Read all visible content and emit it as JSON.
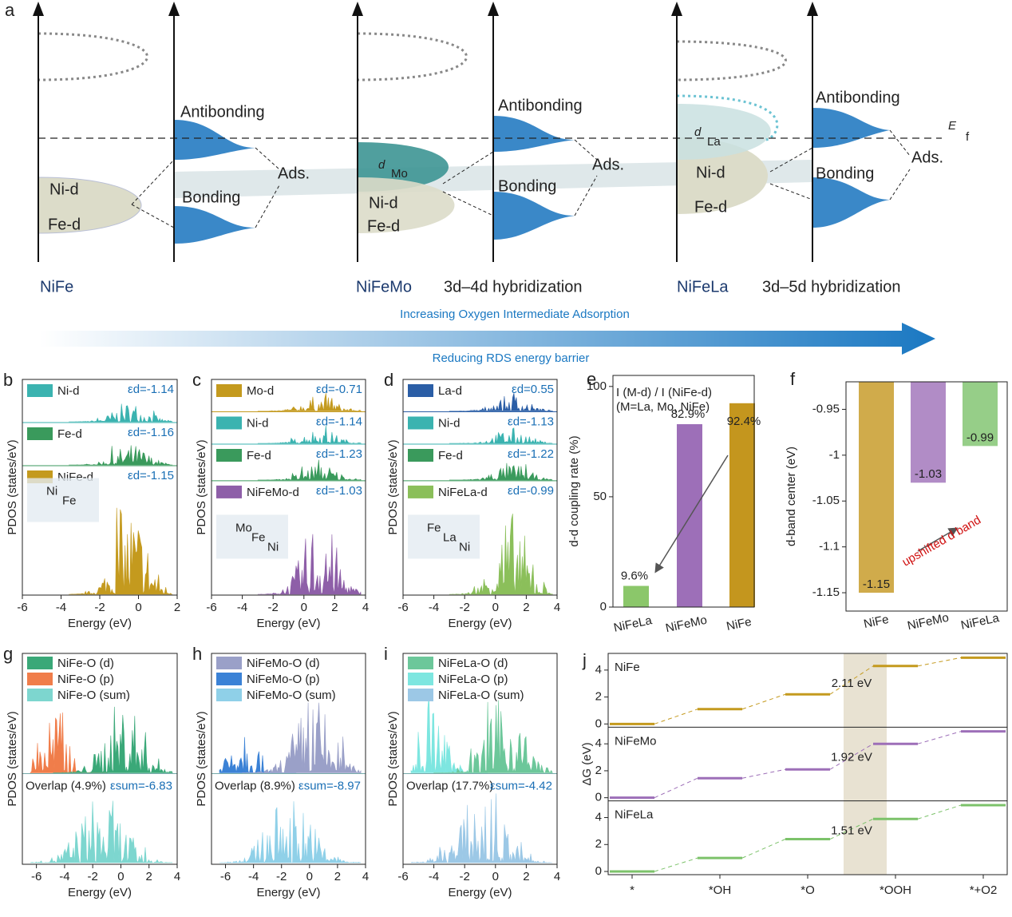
{
  "diagram": {
    "label": "a",
    "fermi": {
      "main": "E",
      "sub": "f"
    },
    "antibonding": "Antibonding",
    "bonding": "Bonding",
    "ads": "Ads.",
    "ni_d": "Ni-d",
    "fe_d": "Fe-d",
    "d_mo": {
      "main": "d",
      "sub": "Mo"
    },
    "d_la": {
      "main": "d",
      "sub": "La"
    },
    "systems": [
      "NiFe",
      "NiFeMo",
      "NiFeLa"
    ],
    "hybridizations": [
      "3d–4d hybridization",
      "3d–5d hybridization"
    ],
    "arrow_label": "Increasing Oxygen Intermediate Adsorption",
    "arrow_sublabel": "Reducing RDS energy barrier"
  },
  "pdos_axis": {
    "ylabel": "PDOS (states/eV)",
    "xlabel": "Energy (eV)"
  },
  "pdos": [
    {
      "label": "b",
      "xlim": [
        -6,
        2
      ],
      "xticks": [
        -6,
        -4,
        -2,
        0,
        2
      ],
      "rows": [
        {
          "name": "Ni-d",
          "color": "#3bb3b0",
          "eps": "εd=-1.14"
        },
        {
          "name": "Fe-d",
          "color": "#3a9a5c",
          "eps": "εd=-1.16"
        },
        {
          "name": "NiFe-d",
          "color": "#c49a1e",
          "eps": "εd=-1.15"
        }
      ],
      "inset_labels": [
        "Ni",
        "Fe"
      ]
    },
    {
      "label": "c",
      "xlim": [
        -6,
        4
      ],
      "xticks": [
        -6,
        -4,
        -2,
        0,
        2,
        4
      ],
      "rows": [
        {
          "name": "Mo-d",
          "color": "#c49a1e",
          "eps": "εd=-0.71"
        },
        {
          "name": "Ni-d",
          "color": "#3bb3b0",
          "eps": "εd=-1.14"
        },
        {
          "name": "Fe-d",
          "color": "#3a9a5c",
          "eps": "εd=-1.23"
        },
        {
          "name": "NiFeMo-d",
          "color": "#8e5fa8",
          "eps": "εd=-1.03"
        }
      ],
      "inset_labels": [
        "Mo",
        "Fe",
        "Ni"
      ]
    },
    {
      "label": "d",
      "xlim": [
        -6,
        4
      ],
      "xticks": [
        -6,
        -4,
        -2,
        0,
        2,
        4
      ],
      "rows": [
        {
          "name": "La-d",
          "color": "#2b5ea6",
          "eps": "εd=0.55"
        },
        {
          "name": "Ni-d",
          "color": "#3bb3b0",
          "eps": "εd=-1.13"
        },
        {
          "name": "Fe-d",
          "color": "#3a9a5c",
          "eps": "εd=-1.22"
        },
        {
          "name": "NiFeLa-d",
          "color": "#8bbf5a",
          "eps": "εd=-0.99"
        }
      ],
      "inset_labels": [
        "Fe",
        "La",
        "Ni"
      ]
    }
  ],
  "overlap": [
    {
      "label": "g",
      "xlim": [
        -7,
        4
      ],
      "xticks": [
        -6,
        -4,
        -2,
        0,
        2,
        4
      ],
      "legend": [
        {
          "name": "NiFe-O (d)",
          "color": "#3aa878"
        },
        {
          "name": "NiFe-O (p)",
          "color": "#f07d4a"
        },
        {
          "name": "NiFe-O (sum)",
          "color": "#7dd6cf"
        }
      ],
      "overlap": "Overlap (4.9%)",
      "eps": "εsum=-6.83"
    },
    {
      "label": "h",
      "xlim": [
        -7,
        4
      ],
      "xticks": [
        -6,
        -4,
        -2,
        0,
        2,
        4
      ],
      "legend": [
        {
          "name": "NiFeMo-O (d)",
          "color": "#9aa0c8"
        },
        {
          "name": "NiFeMo-O (p)",
          "color": "#3b82d6"
        },
        {
          "name": "NiFeMo-O (sum)",
          "color": "#8fd0e8"
        }
      ],
      "overlap": "Overlap (8.9%)",
      "eps": "εsum=-8.97"
    },
    {
      "label": "i",
      "xlim": [
        -6,
        4
      ],
      "xticks": [
        -6,
        -4,
        -2,
        0,
        2,
        4
      ],
      "legend": [
        {
          "name": "NiFeLa-O (d)",
          "color": "#6cc79a"
        },
        {
          "name": "NiFeLa-O (p)",
          "color": "#7de6e0"
        },
        {
          "name": "NiFeLa-O (sum)",
          "color": "#9cc8e6"
        }
      ],
      "overlap": "Overlap (17.7%)",
      "eps": "εsum=-4.42"
    }
  ],
  "chart_data": [
    {
      "type": "bar",
      "label": "e",
      "ylabel": "d-d coupling rate (%)",
      "annotation": [
        "I (M-d) / I (NiFe-d)",
        "(M=La, Mo, NiFe)"
      ],
      "categories": [
        "NiFeLa",
        "NiFeMo",
        "NiFe"
      ],
      "values": [
        9.6,
        82.9,
        92.4
      ],
      "value_labels": [
        "9.6%",
        "82.9%",
        "92.4%"
      ],
      "colors": [
        "#8bc76a",
        "#9d6fb8",
        "#c4961e"
      ],
      "ylim": [
        0,
        105
      ],
      "yticks": [
        0,
        50,
        100
      ]
    },
    {
      "type": "hangbar",
      "label": "f",
      "ylabel": "d-band center (eV)",
      "annotation": "upshifted d band",
      "categories": [
        "NiFe",
        "NiFeMo",
        "NiFeLa"
      ],
      "values": [
        -1.15,
        -1.03,
        -0.99
      ],
      "colors": [
        "#c4961e",
        "#9d6fb8",
        "#7cc26a"
      ],
      "ylim": [
        -1.17,
        -0.92
      ],
      "yticks": [
        -0.95,
        -1.0,
        -1.05,
        -1.1,
        -1.15
      ]
    },
    {
      "type": "steps",
      "label": "j",
      "ylabel": "ΔG (eV)",
      "categories": [
        "*",
        "*OH",
        "*O",
        "*OOH",
        "*+O2"
      ],
      "ylim": [
        0,
        5
      ],
      "yticks": [
        0,
        2,
        4
      ],
      "series": [
        {
          "name": "NiFe",
          "color": "#c49a1e",
          "values": [
            0,
            1.1,
            2.2,
            4.3,
            4.92
          ],
          "annotation": "2.11 eV"
        },
        {
          "name": "NiFeMo",
          "color": "#9d6fb8",
          "values": [
            0,
            1.45,
            2.1,
            4.0,
            4.92
          ],
          "annotation": "1.92 eV"
        },
        {
          "name": "NiFeLa",
          "color": "#7cc26a",
          "values": [
            0,
            1.0,
            2.4,
            3.9,
            4.92
          ],
          "annotation": "1.51 eV"
        }
      ]
    }
  ]
}
